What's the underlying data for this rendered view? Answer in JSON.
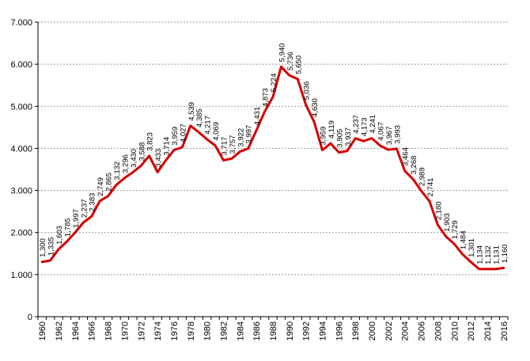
{
  "chart_data": {
    "type": "line",
    "title": "",
    "xlabel": "",
    "ylabel": "",
    "x": [
      1960,
      1961,
      1962,
      1963,
      1964,
      1965,
      1966,
      1967,
      1968,
      1969,
      1970,
      1971,
      1972,
      1973,
      1974,
      1975,
      1976,
      1977,
      1978,
      1979,
      1980,
      1981,
      1982,
      1983,
      1984,
      1985,
      1986,
      1987,
      1988,
      1989,
      1990,
      1991,
      1992,
      1993,
      1994,
      1995,
      1996,
      1997,
      1998,
      1999,
      2000,
      2001,
      2002,
      2003,
      2004,
      2005,
      2006,
      2007,
      2008,
      2009,
      2010,
      2011,
      2012,
      2013,
      2014,
      2015,
      2016
    ],
    "series": [
      {
        "values": [
          1300,
          1335,
          1603,
          1785,
          1997,
          2237,
          2383,
          2749,
          2865,
          3132,
          3296,
          3430,
          3588,
          3823,
          3433,
          3714,
          3959,
          4027,
          4539,
          4385,
          4217,
          4069,
          3717,
          3757,
          3922,
          3997,
          4431,
          4873,
          5224,
          5940,
          5736,
          5650,
          5036,
          4630,
          3959,
          4119,
          3905,
          3937,
          4237,
          4173,
          4241,
          4067,
          3967,
          3993,
          3464,
          3268,
          2989,
          2741,
          2180,
          1903,
          1729,
          1484,
          1301,
          1134,
          1132,
          1131,
          1160
        ],
        "labels": [
          "1,300",
          "1,335",
          "1,603",
          "1,785",
          "1,997",
          "2,237",
          "2,383",
          "2,749",
          "2,865",
          "3,132",
          "3,296",
          "3,430",
          "3,588",
          "3,823",
          "3,433",
          "3,714",
          "3,959",
          "4,027",
          "4,539",
          "4,385",
          "4,217",
          "4,069",
          "3,717",
          "3,757",
          "3,922",
          "3,997",
          "4,431",
          "4,873",
          "5,224",
          "5,940",
          "5,736",
          "5,650",
          "5,036",
          "4,630",
          "3,959",
          "4,119",
          "3,905",
          "3,937",
          "4,237",
          "4,173",
          "4,241",
          "4,067",
          "3,967",
          "3,993",
          "3,464",
          "3,268",
          "2,989",
          "2,741",
          "2,180",
          "1,903",
          "1,729",
          "1,484",
          "1,301",
          "1,134",
          "1,132",
          "1,131",
          "1,160"
        ],
        "color": "#d40000"
      }
    ],
    "xticks": [
      "1960",
      "1962",
      "1964",
      "1966",
      "1968",
      "1970",
      "1972",
      "1974",
      "1976",
      "1978",
      "1980",
      "1982",
      "1984",
      "1986",
      "1988",
      "1990",
      "1992",
      "1994",
      "1996",
      "1998",
      "2000",
      "2002",
      "2004",
      "2006",
      "2008",
      "2010",
      "2012",
      "2014",
      "2016"
    ],
    "yticks": [
      0,
      1000,
      2000,
      3000,
      4000,
      5000,
      6000,
      7000
    ],
    "ytick_labels": [
      "0",
      "1.000",
      "2.000",
      "3.000",
      "4.000",
      "5.000",
      "6.000",
      "7.000"
    ],
    "ylim": [
      0,
      7000
    ],
    "xlim": [
      1960,
      2016
    ],
    "grid": "horizontal dashed",
    "legend": "none"
  }
}
